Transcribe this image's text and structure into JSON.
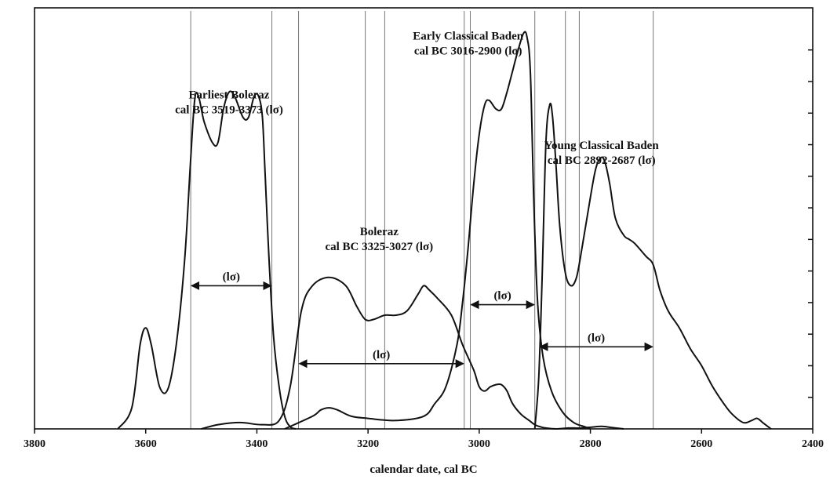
{
  "chart_data": {
    "type": "line",
    "xlabel": "calendar date, cal BC",
    "ylabel": "",
    "xlim": [
      3800,
      2400
    ],
    "ylim": [
      0,
      1
    ],
    "x_reversed": true,
    "x_ticks": [
      {
        "value": 3800,
        "label": "3800"
      },
      {
        "value": 3600,
        "label": "3600"
      },
      {
        "value": 3400,
        "label": "3400"
      },
      {
        "value": 3200,
        "label": "3200"
      },
      {
        "value": 3000,
        "label": "3000"
      },
      {
        "value": 2800,
        "label": "2800"
      },
      {
        "value": 2600,
        "label": "2600"
      },
      {
        "value": 2400,
        "label": "2400"
      }
    ],
    "right_ticks": [
      0.075,
      0.15,
      0.225,
      0.3,
      0.375,
      0.45,
      0.525,
      0.6,
      0.675,
      0.75,
      0.825,
      0.9
    ],
    "annotations": [
      {
        "line1": "Earliest Boleraz",
        "line2": "cal BC 3519-3373 (lσ)",
        "x": 3450,
        "y": 0.785
      },
      {
        "line1": "Boleraz",
        "line2": "cal BC 3325-3027 (lσ)",
        "x": 3180,
        "y": 0.46
      },
      {
        "line1": "Early Classical Baden",
        "line2": "cal BC 3016-2900 (lσ)",
        "x": 3020,
        "y": 0.925
      },
      {
        "line1": "Young Classical Baden",
        "line2": "cal BC 2892-2687 (lσ)",
        "x": 2780,
        "y": 0.665
      }
    ],
    "intervals": [
      {
        "from": 3519,
        "to": 3373,
        "y": 0.34,
        "label": "(lσ)"
      },
      {
        "from": 3325,
        "to": 3027,
        "y": 0.155,
        "label": "(lσ)"
      },
      {
        "from": 3016,
        "to": 2900,
        "y": 0.295,
        "label": "(lσ)"
      },
      {
        "from": 2892,
        "to": 2687,
        "y": 0.195,
        "label": "(lσ)"
      }
    ],
    "guide_lines": [
      3519,
      3373,
      3325,
      3205,
      3170,
      3027,
      3016,
      2900,
      2845,
      2820,
      2687
    ],
    "series": [
      {
        "x": [
          3650,
          3625,
          3610,
          3600,
          3590,
          3575,
          3560,
          3545,
          3530,
          3520,
          3512,
          3505,
          3495,
          3480,
          3470,
          3460,
          3450,
          3440,
          3425,
          3415,
          3405,
          3397,
          3390,
          3385,
          3378,
          3370,
          3360,
          3350,
          3340,
          3330
        ],
        "y": [
          0,
          0.05,
          0.2,
          0.24,
          0.2,
          0.1,
          0.095,
          0.2,
          0.4,
          0.62,
          0.78,
          0.79,
          0.73,
          0.68,
          0.68,
          0.76,
          0.8,
          0.79,
          0.74,
          0.74,
          0.79,
          0.79,
          0.74,
          0.6,
          0.4,
          0.22,
          0.1,
          0.03,
          0.005,
          0
        ]
      },
      {
        "x": [
          3500,
          3470,
          3430,
          3390,
          3360,
          3340,
          3320,
          3300,
          3270,
          3240,
          3220,
          3205,
          3190,
          3170,
          3150,
          3130,
          3110,
          3100,
          3090,
          3075,
          3050,
          3030,
          3010,
          3000,
          2990,
          2980,
          2970,
          2960,
          2950,
          2940,
          2925,
          2910,
          2900,
          2890,
          2880,
          2860,
          2840,
          2820,
          2800,
          2780,
          2760,
          2740
        ],
        "y": [
          0,
          0.01,
          0.015,
          0.01,
          0.02,
          0.1,
          0.28,
          0.34,
          0.36,
          0.34,
          0.29,
          0.26,
          0.26,
          0.27,
          0.27,
          0.28,
          0.32,
          0.34,
          0.33,
          0.31,
          0.27,
          0.2,
          0.14,
          0.1,
          0.09,
          0.1,
          0.105,
          0.105,
          0.09,
          0.06,
          0.035,
          0.02,
          0.01,
          0.005,
          0.002,
          0,
          0.002,
          0.002,
          0.004,
          0.006,
          0.003,
          0
        ]
      },
      {
        "x": [
          3350,
          3300,
          3285,
          3270,
          3255,
          3230,
          3200,
          3150,
          3100,
          3080,
          3060,
          3040,
          3030,
          3020,
          3010,
          3000,
          2990,
          2982,
          2970,
          2960,
          2950,
          2940,
          2930,
          2920,
          2914,
          2908,
          2902,
          2895,
          2885,
          2870,
          2850,
          2830,
          2810,
          2800
        ],
        "y": [
          0,
          0.03,
          0.045,
          0.05,
          0.045,
          0.03,
          0.025,
          0.02,
          0.03,
          0.06,
          0.1,
          0.2,
          0.3,
          0.43,
          0.58,
          0.7,
          0.77,
          0.78,
          0.76,
          0.76,
          0.8,
          0.85,
          0.9,
          0.94,
          0.93,
          0.85,
          0.55,
          0.3,
          0.17,
          0.09,
          0.04,
          0.015,
          0.005,
          0
        ]
      },
      {
        "x": [
          2900,
          2893,
          2887,
          2880,
          2873,
          2868,
          2862,
          2855,
          2845,
          2835,
          2825,
          2815,
          2800,
          2790,
          2780,
          2773,
          2765,
          2755,
          2740,
          2730,
          2720,
          2700,
          2687,
          2675,
          2660,
          2640,
          2620,
          2600,
          2580,
          2560,
          2545,
          2525,
          2510,
          2500,
          2490,
          2475
        ],
        "y": [
          0,
          0.12,
          0.35,
          0.68,
          0.77,
          0.74,
          0.63,
          0.48,
          0.37,
          0.34,
          0.36,
          0.43,
          0.55,
          0.62,
          0.645,
          0.63,
          0.58,
          0.5,
          0.46,
          0.45,
          0.44,
          0.41,
          0.39,
          0.33,
          0.28,
          0.24,
          0.19,
          0.15,
          0.1,
          0.06,
          0.035,
          0.015,
          0.02,
          0.025,
          0.015,
          0
        ]
      }
    ]
  }
}
